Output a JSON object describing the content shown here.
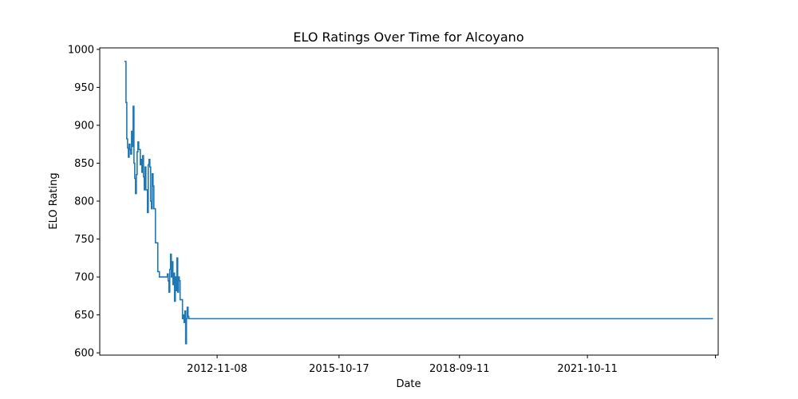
{
  "chart_data": {
    "type": "line",
    "title": "ELO Ratings Over Time for Alcoyano",
    "xlabel": "Date",
    "ylabel": "ELO Rating",
    "x_axis_type": "date",
    "xlim": [
      "2010-01-10",
      "2024-12-05"
    ],
    "ylim": [
      597,
      1002
    ],
    "yticks": [
      600,
      650,
      700,
      750,
      800,
      850,
      900,
      950,
      1000
    ],
    "xticks": [
      "2012-11-08",
      "2015-10-17",
      "2018-09-11",
      "2021-10-11",
      "2024-11-11"
    ],
    "xtick_labels": [
      "2012-11-08",
      "2015-10-17",
      "2018-09-11",
      "2021-10-11",
      ""
    ],
    "grid": false,
    "legend": "none",
    "series_color": "#1f77b4",
    "series": [
      {
        "x": [
          "2010-08-15",
          "2010-08-22",
          "2010-08-29",
          "2010-09-05",
          "2010-09-12",
          "2010-09-19",
          "2010-09-26",
          "2010-10-03",
          "2010-10-10",
          "2010-10-17",
          "2010-10-24",
          "2010-10-31",
          "2010-11-07",
          "2010-11-14",
          "2010-11-21",
          "2010-11-28",
          "2010-12-05",
          "2010-12-12",
          "2010-12-19",
          "2011-01-02",
          "2011-01-09",
          "2011-01-16",
          "2011-01-23",
          "2011-01-30",
          "2011-02-06",
          "2011-02-13",
          "2011-02-20",
          "2011-02-27",
          "2011-03-06",
          "2011-03-13",
          "2011-03-20",
          "2011-03-27",
          "2011-04-03",
          "2011-04-10",
          "2011-04-17",
          "2011-04-24",
          "2011-05-01",
          "2011-05-08",
          "2011-05-15",
          "2011-05-22",
          "2011-06-05",
          "2011-06-19",
          "2011-08-28",
          "2011-09-04",
          "2011-09-11",
          "2011-09-18",
          "2011-09-25",
          "2011-10-02",
          "2011-10-09",
          "2011-10-16",
          "2011-10-23",
          "2011-10-30",
          "2011-11-06",
          "2011-11-13",
          "2011-11-20",
          "2011-11-27",
          "2011-12-04",
          "2011-12-11",
          "2011-12-18",
          "2012-01-08",
          "2012-01-15",
          "2012-01-22",
          "2012-01-29",
          "2012-02-05",
          "2012-02-12",
          "2012-02-19",
          "2012-02-26",
          "2012-03-04",
          "2012-03-11",
          "2012-03-18",
          "2012-03-25",
          "2012-04-01",
          "2012-04-08",
          "2012-04-15",
          "2012-04-22",
          "2012-04-29",
          "2012-05-06",
          "2012-05-13",
          "2012-05-20",
          "2012-05-27",
          "2024-10-20"
        ],
        "y": [
          984,
          984,
          930,
          882,
          870,
          858,
          875,
          868,
          862,
          892,
          872,
          925,
          850,
          830,
          810,
          835,
          865,
          878,
          868,
          848,
          855,
          838,
          860,
          832,
          815,
          845,
          815,
          815,
          785,
          848,
          855,
          845,
          800,
          790,
          836,
          820,
          790,
          790,
          745,
          745,
          707,
          700,
          704,
          695,
          680,
          710,
          730,
          700,
          720,
          690,
          705,
          668,
          700,
          682,
          725,
          680,
          700,
          695,
          670,
          645,
          650,
          640,
          655,
          612,
          645,
          660,
          648,
          645,
          645,
          645,
          645,
          645,
          645,
          645,
          645,
          645,
          645,
          645,
          645,
          645,
          645
        ]
      }
    ]
  }
}
